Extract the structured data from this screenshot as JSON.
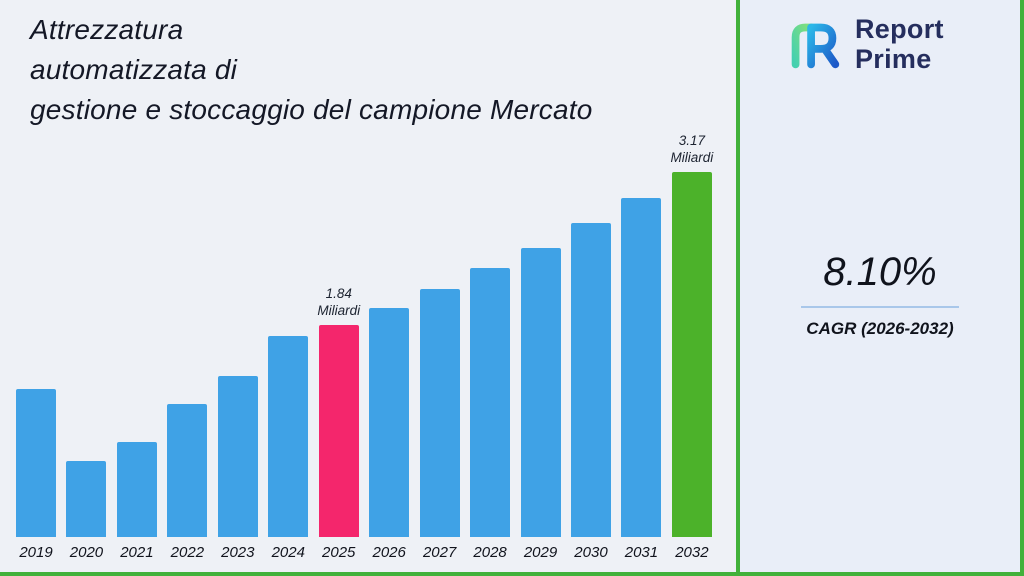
{
  "header": {
    "title_lines": [
      "Attrezzatura",
      "automatizzata di",
      "gestione e stoccaggio del campione Mercato"
    ]
  },
  "brand": {
    "line1": "Report",
    "line2": "Prime"
  },
  "sidebar": {
    "stat_value": "8.10%",
    "stat_label": "CAGR (2026-2032)"
  },
  "colors": {
    "frame_green": "#41b13a",
    "bar_blue": "#3fa2e6",
    "bar_pink": "#f4266c",
    "bar_green": "#4cb22a",
    "underline_blue": "#a9c7ea",
    "navy_text": "#252e5e"
  },
  "chart_data": {
    "type": "bar",
    "title": "Attrezzatura automatizzata di gestione e stoccaggio del campione Mercato",
    "xlabel": "",
    "ylabel": "",
    "unit": "Miliardi",
    "categories": [
      "2019",
      "2020",
      "2021",
      "2022",
      "2023",
      "2024",
      "2025",
      "2026",
      "2027",
      "2028",
      "2029",
      "2030",
      "2031",
      "2032"
    ],
    "values": [
      1.28,
      0.66,
      0.82,
      1.15,
      1.4,
      1.74,
      1.84,
      1.99,
      2.15,
      2.33,
      2.51,
      2.72,
      2.94,
      3.17
    ],
    "ylim": [
      0,
      3.4
    ],
    "grid": false,
    "legend": false,
    "annotations": [
      {
        "category": "2025",
        "lines": [
          "1.84",
          "Miliardi"
        ]
      },
      {
        "category": "2032",
        "lines": [
          "3.17",
          "Miliardi"
        ]
      }
    ],
    "colors": {
      "default": "#3fa2e6",
      "2025": "#f4266c",
      "2032": "#4cb22a"
    }
  }
}
